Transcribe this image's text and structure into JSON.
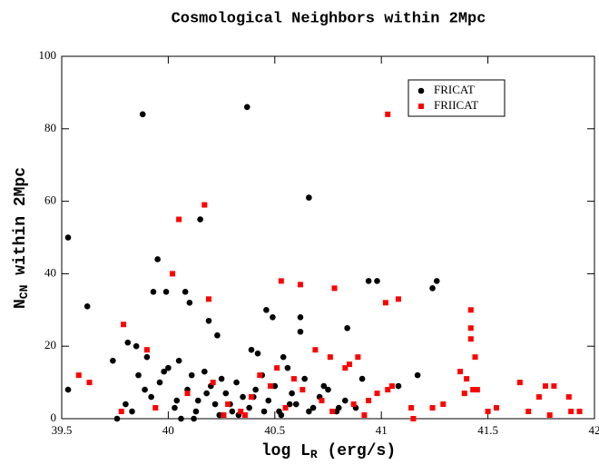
{
  "chart_data": {
    "type": "scatter",
    "title": "Cosmological Neighbors within 2Mpc",
    "xlabel": [
      "log L",
      "R",
      " (erg/s)"
    ],
    "ylabel": [
      "N",
      "CN",
      " within 2Mpc"
    ],
    "xlim": [
      39.5,
      42
    ],
    "ylim": [
      0,
      100
    ],
    "xticks": [
      39.5,
      40,
      40.5,
      41,
      41.5,
      42
    ],
    "yticks": [
      0,
      20,
      40,
      60,
      80,
      100
    ],
    "legend": "top-right",
    "series": [
      {
        "name": "FRICAT",
        "color": "#000000",
        "marker": "circle",
        "x": [
          39.53,
          39.53,
          39.62,
          39.88,
          40.37,
          40.66,
          40.15,
          39.95,
          39.93,
          39.99,
          40.08,
          40.1,
          40.19,
          40.23,
          40.94,
          40.98,
          41.26,
          41.24,
          40.84,
          40.46,
          40.49,
          40.62,
          40.62,
          41.17,
          39.74,
          39.81,
          39.85,
          39.9,
          40.39,
          40.42,
          40.54,
          39.76,
          40.06,
          40.12,
          40.91,
          41.08,
          39.8,
          39.86,
          39.92,
          39.96,
          40.0,
          40.03,
          40.05,
          40.09,
          40.11,
          40.14,
          40.17,
          40.2,
          40.22,
          40.25,
          40.27,
          40.3,
          40.32,
          40.35,
          40.38,
          40.41,
          40.44,
          40.47,
          40.5,
          40.52,
          40.56,
          40.58,
          40.6,
          40.64,
          40.68,
          40.71,
          40.75,
          40.79,
          40.83,
          40.88,
          39.83,
          39.89,
          39.98,
          40.04,
          40.13,
          40.18,
          40.24,
          40.29,
          40.33,
          40.4,
          40.45,
          40.53,
          40.57,
          40.66,
          40.73,
          40.8
        ],
        "values": [
          50,
          8,
          31,
          84,
          86,
          61,
          55,
          44,
          35,
          35,
          35,
          32,
          27,
          23,
          38,
          38,
          38,
          36,
          25,
          30,
          28,
          24,
          28,
          12,
          16,
          21,
          20,
          17,
          19,
          18,
          17,
          0,
          0,
          0,
          11,
          9,
          4,
          12,
          6,
          10,
          14,
          3,
          16,
          8,
          12,
          5,
          13,
          9,
          4,
          11,
          7,
          2,
          10,
          6,
          3,
          8,
          12,
          5,
          9,
          2,
          14,
          7,
          4,
          11,
          3,
          6,
          8,
          2,
          5,
          3,
          2,
          8,
          13,
          5,
          2,
          7,
          1,
          4,
          1,
          6,
          2,
          1,
          4,
          2,
          9,
          3
        ]
      },
      {
        "name": "FRIICAT",
        "color": "#ff0000",
        "marker": "square",
        "x": [
          41.03,
          40.05,
          40.17,
          40.02,
          40.19,
          39.79,
          39.9,
          39.58,
          39.63,
          40.53,
          40.62,
          40.78,
          41.02,
          41.08,
          41.42,
          41.42,
          41.42,
          41.44,
          41.37,
          41.4,
          41.43,
          41.45,
          41.39,
          41.65,
          41.74,
          41.77,
          41.81,
          41.88,
          41.89,
          41.93,
          41.79,
          41.69,
          41.54,
          41.5,
          41.29,
          41.24,
          41.14,
          41.15,
          40.76,
          40.69,
          40.83,
          40.89,
          40.85,
          40.98,
          41.03,
          41.05,
          40.94,
          39.78,
          39.94,
          40.09,
          40.21,
          40.28,
          40.34,
          40.39,
          40.43,
          40.48,
          40.55,
          40.59,
          40.63,
          40.72,
          40.77,
          40.87,
          40.92,
          40.26,
          40.36,
          40.51
        ],
        "values": [
          84,
          55,
          59,
          40,
          33,
          26,
          19,
          12,
          10,
          38,
          37,
          36,
          32,
          33,
          30,
          25,
          22,
          17,
          13,
          11,
          8,
          8,
          7,
          10,
          6,
          9,
          9,
          6,
          2,
          2,
          1,
          2,
          3,
          2,
          4,
          3,
          3,
          0,
          17,
          19,
          14,
          17,
          15,
          7,
          8,
          9,
          5,
          2,
          3,
          7,
          10,
          4,
          2,
          6,
          12,
          9,
          3,
          11,
          8,
          5,
          2,
          4,
          1,
          1,
          1,
          14
        ]
      }
    ]
  }
}
